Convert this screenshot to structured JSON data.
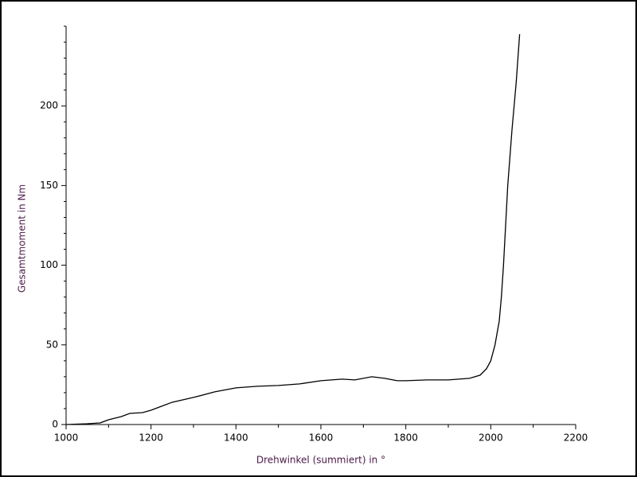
{
  "chart_data": {
    "type": "line",
    "xlabel": "Drehwinkel (summiert) in °",
    "ylabel": "Gesamtmoment in Nm",
    "xlim": [
      1000,
      2200
    ],
    "ylim": [
      0,
      250
    ],
    "xticks": [
      1000,
      1200,
      1400,
      1600,
      1800,
      2000,
      2200
    ],
    "yticks": [
      0,
      50,
      100,
      150,
      200
    ],
    "xminorticks": [
      1100,
      1300,
      1500,
      1700,
      1900,
      2100
    ],
    "yminorticks": [
      10,
      20,
      30,
      40,
      60,
      70,
      80,
      90,
      110,
      120,
      130,
      140,
      160,
      170,
      180,
      190,
      210,
      220,
      230,
      240,
      250
    ],
    "color": "#000000",
    "x": [
      1000,
      1050,
      1080,
      1100,
      1130,
      1150,
      1180,
      1200,
      1250,
      1300,
      1350,
      1400,
      1450,
      1500,
      1550,
      1600,
      1650,
      1680,
      1720,
      1750,
      1780,
      1800,
      1850,
      1900,
      1950,
      1975,
      1990,
      2000,
      2010,
      2020,
      2025,
      2030,
      2035,
      2040,
      2050,
      2060,
      2068
    ],
    "values": [
      0,
      0.5,
      1,
      3,
      5,
      7,
      7.5,
      9,
      14,
      17,
      20.5,
      23,
      24,
      24.5,
      25.5,
      27.5,
      28.5,
      28,
      30,
      29,
      27.5,
      27.5,
      28,
      28,
      29,
      31,
      35,
      40,
      50,
      65,
      80,
      100,
      125,
      150,
      185,
      215,
      245
    ]
  }
}
